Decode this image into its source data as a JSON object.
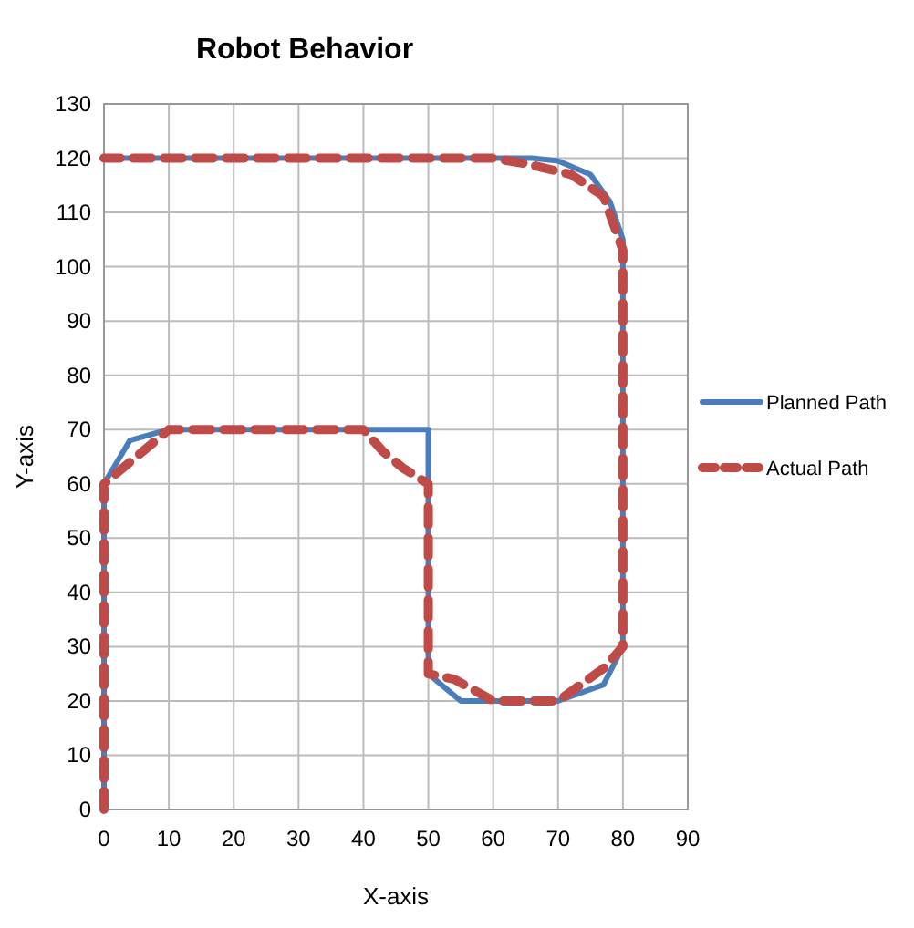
{
  "chart_data": {
    "type": "line",
    "title": "Robot Behavior",
    "xlabel": "X-axis",
    "ylabel": "Y-axis",
    "xlim": [
      0,
      90
    ],
    "xticks": [
      0,
      10,
      20,
      30,
      40,
      50,
      60,
      70,
      80,
      90
    ],
    "ylim": [
      0,
      130
    ],
    "yticks": [
      0,
      10,
      20,
      30,
      40,
      50,
      60,
      70,
      80,
      90,
      100,
      110,
      120,
      130
    ],
    "grid": true,
    "legend": "right",
    "marker": "none",
    "series": [
      {
        "name": "Planned Path",
        "color": "#4a7ebb",
        "line_style": "solid",
        "x": [
          0,
          0,
          4,
          10,
          50,
          50,
          55,
          70,
          77,
          80,
          80,
          78,
          75,
          70,
          66,
          0
        ],
        "values": [
          0,
          60,
          68,
          70,
          70,
          25,
          20,
          20,
          23,
          30,
          105,
          112,
          117,
          119.5,
          120,
          120
        ]
      },
      {
        "name": "Actual Path",
        "color": "#be4b48",
        "line_style": "dashed",
        "x": [
          0,
          0,
          5,
          10,
          40,
          43,
          46,
          50,
          50,
          54,
          60,
          70,
          77,
          80,
          80,
          77,
          72,
          65,
          60,
          0
        ],
        "values": [
          0,
          60,
          65,
          70,
          70,
          66,
          63,
          60,
          25,
          24,
          20,
          20,
          26,
          30,
          103,
          113,
          117,
          119,
          120,
          120
        ]
      }
    ]
  }
}
